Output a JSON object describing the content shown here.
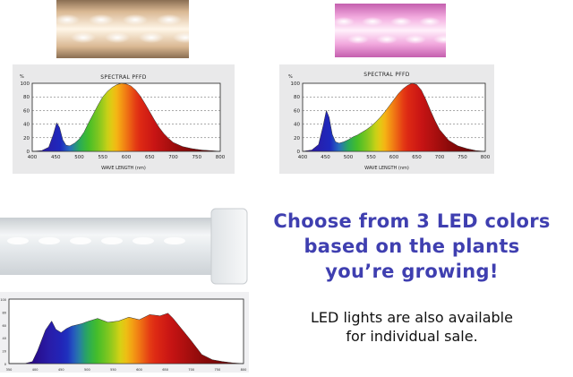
{
  "chart_data": [
    {
      "type": "area",
      "title": "SPECTRAL PFFD",
      "unit": "%",
      "xlabel": "WAVE LENGTH (nm)",
      "ylabel": "",
      "xlim": [
        400,
        800
      ],
      "ylim": [
        0,
        100
      ],
      "xticks": [
        400,
        450,
        500,
        550,
        600,
        650,
        700,
        750,
        800
      ],
      "yticks": [
        0,
        20,
        40,
        60,
        80,
        100
      ],
      "grid": true,
      "x": [
        400,
        420,
        435,
        445,
        452,
        458,
        465,
        472,
        480,
        490,
        500,
        510,
        520,
        530,
        540,
        550,
        560,
        570,
        580,
        590,
        600,
        610,
        620,
        630,
        640,
        650,
        660,
        670,
        680,
        690,
        700,
        720,
        740,
        760,
        780,
        800
      ],
      "values": [
        0,
        1,
        6,
        25,
        42,
        35,
        17,
        9,
        8,
        12,
        18,
        28,
        42,
        55,
        68,
        80,
        88,
        94,
        98,
        100,
        99,
        96,
        90,
        81,
        70,
        58,
        46,
        35,
        26,
        19,
        13,
        7,
        4,
        2,
        1,
        0
      ]
    },
    {
      "type": "area",
      "title": "SPECTRAL PFFD",
      "unit": "%",
      "xlabel": "WAVE LENGTH (nm)",
      "ylabel": "",
      "xlim": [
        400,
        800
      ],
      "ylim": [
        0,
        100
      ],
      "xticks": [
        400,
        450,
        500,
        550,
        600,
        650,
        700,
        750,
        800
      ],
      "yticks": [
        0,
        20,
        40,
        60,
        80,
        100
      ],
      "grid": true,
      "x": [
        400,
        420,
        435,
        445,
        452,
        458,
        465,
        472,
        480,
        490,
        500,
        510,
        520,
        530,
        540,
        550,
        560,
        570,
        580,
        590,
        600,
        610,
        620,
        630,
        640,
        650,
        660,
        670,
        680,
        690,
        700,
        720,
        740,
        760,
        780,
        800
      ],
      "values": [
        0,
        2,
        10,
        38,
        60,
        50,
        25,
        14,
        12,
        14,
        17,
        21,
        24,
        28,
        32,
        37,
        43,
        50,
        58,
        67,
        76,
        85,
        92,
        97,
        100,
        98,
        90,
        76,
        60,
        45,
        32,
        16,
        8,
        4,
        1,
        0
      ]
    },
    {
      "type": "area",
      "title": "",
      "xlabel": "",
      "ylabel": "",
      "xlim": [
        350,
        800
      ],
      "ylim": [
        0,
        100
      ],
      "xticks": [
        350,
        400,
        450,
        500,
        550,
        600,
        650,
        700,
        750,
        800
      ],
      "yticks": [
        0,
        20,
        40,
        60,
        80,
        100
      ],
      "grid": false,
      "x": [
        350,
        380,
        395,
        405,
        420,
        432,
        440,
        450,
        460,
        470,
        480,
        490,
        500,
        520,
        540,
        560,
        580,
        600,
        620,
        640,
        655,
        665,
        675,
        690,
        700,
        720,
        740,
        760,
        780,
        800
      ],
      "values": [
        0,
        0,
        3,
        20,
        52,
        66,
        53,
        48,
        54,
        58,
        60,
        62,
        65,
        70,
        64,
        66,
        72,
        68,
        76,
        74,
        78,
        70,
        60,
        45,
        35,
        14,
        6,
        3,
        1,
        0
      ]
    }
  ],
  "headline": {
    "line1": "Choose from 3 LED colors",
    "line2": "based on the plants",
    "line3": "you’re growing!"
  },
  "subtext": {
    "line1": "LED lights are also available",
    "line2": "for individual sale."
  },
  "colors": {
    "headline": "#3f3fb0",
    "panel_bg": "#e9e9ea",
    "white_led": "#fff2df",
    "pink_led": "#f5b8e6"
  }
}
